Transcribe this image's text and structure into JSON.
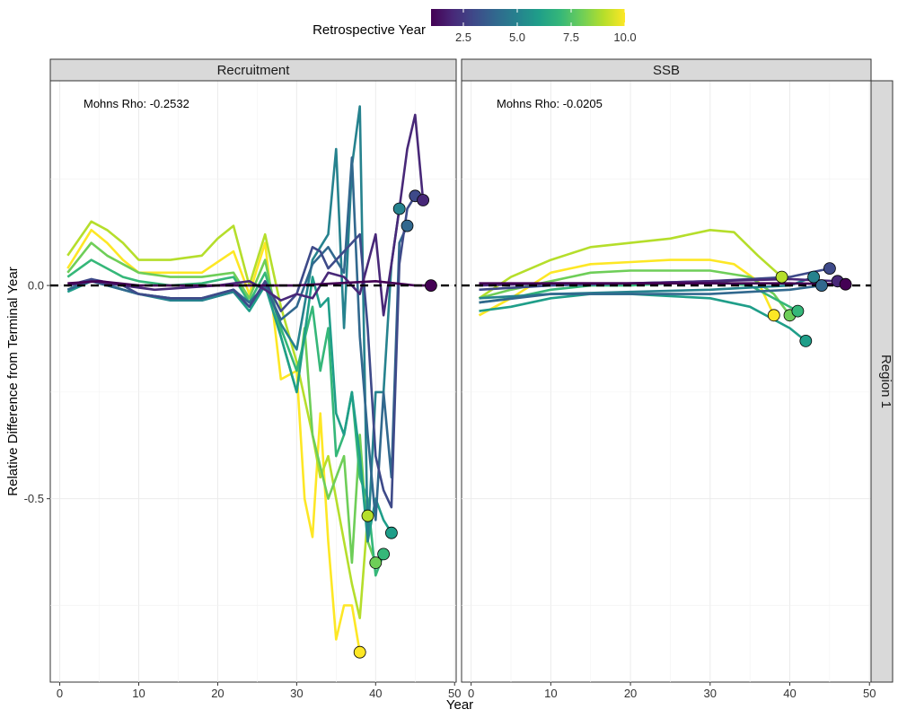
{
  "chart_data": {
    "type": "line",
    "legend": {
      "title": "Retrospective Year",
      "ticks": [
        "2.5",
        "5.0",
        "7.5",
        "10.0"
      ],
      "tick_values": [
        2.5,
        5.0,
        7.5,
        10.0
      ],
      "range": [
        1,
        10
      ],
      "colors": [
        "#440154",
        "#482878",
        "#3e4a89",
        "#31688e",
        "#26828e",
        "#1f9e89",
        "#35b779",
        "#6ece58",
        "#b5de2b",
        "#fde725"
      ]
    },
    "xlabel": "Year",
    "ylabel": "Relative Difference from Terminal Year",
    "row_strip": "Region 1",
    "x_ticks": [
      "0",
      "10",
      "20",
      "30",
      "40",
      "50"
    ],
    "x_tick_values": [
      0,
      10,
      20,
      30,
      40,
      50
    ],
    "y_ticks": [
      "-0.5",
      "0.0"
    ],
    "y_tick_values": [
      -0.5,
      0.0
    ],
    "xlim": [
      -1.2,
      50.2
    ],
    "ylim": [
      -0.93,
      0.48
    ],
    "reference_line": 0.0,
    "panels": [
      {
        "strip": "Recruitment",
        "annotation": "Mohns Rho: -0.2532",
        "series": [
          {
            "peel": 1,
            "x": [
              1,
              5,
              10,
              15,
              20,
              25,
              30,
              35,
              40,
              45,
              47
            ],
            "y": [
              0.005,
              0.01,
              0.0,
              0.0,
              0.0,
              0.0,
              0.0,
              0.005,
              0.01,
              0.0,
              0.0
            ],
            "end": [
              47,
              0.0
            ]
          },
          {
            "peel": 2,
            "x": [
              1,
              4,
              8,
              12,
              16,
              20,
              24,
              26,
              28,
              30,
              32,
              34,
              36,
              38,
              40,
              41,
              42,
              43,
              44,
              45,
              46
            ],
            "y": [
              0.0,
              0.01,
              0.0,
              -0.01,
              -0.005,
              0.0,
              0.01,
              -0.01,
              -0.035,
              -0.02,
              -0.03,
              0.03,
              0.02,
              -0.02,
              0.12,
              -0.07,
              0.05,
              0.18,
              0.32,
              0.4,
              0.2
            ],
            "end": [
              46,
              0.2
            ]
          },
          {
            "peel": 3,
            "x": [
              1,
              4,
              8,
              10,
              14,
              18,
              22,
              24,
              26,
              28,
              30,
              32,
              33,
              34,
              36,
              38,
              39,
              40,
              41,
              42,
              43,
              44,
              45
            ],
            "y": [
              0.0,
              0.015,
              0.0,
              -0.02,
              -0.03,
              -0.03,
              -0.01,
              -0.05,
              0.01,
              -0.06,
              -0.02,
              0.09,
              0.08,
              0.04,
              0.08,
              0.12,
              -0.1,
              -0.4,
              -0.48,
              -0.52,
              0.05,
              0.18,
              0.21
            ],
            "end": [
              45,
              0.21
            ]
          },
          {
            "peel": 4,
            "x": [
              1,
              4,
              8,
              10,
              14,
              18,
              22,
              24,
              26,
              28,
              30,
              32,
              34,
              36,
              37,
              38,
              39,
              40,
              41,
              42,
              43,
              44
            ],
            "y": [
              -0.01,
              0.01,
              -0.01,
              -0.02,
              -0.03,
              -0.03,
              -0.01,
              -0.04,
              0.0,
              -0.08,
              -0.05,
              0.05,
              0.09,
              0.03,
              0.3,
              -0.12,
              -0.35,
              -0.55,
              -0.25,
              -0.45,
              0.1,
              0.14
            ],
            "end": [
              44,
              0.14
            ]
          },
          {
            "peel": 5,
            "x": [
              1,
              4,
              8,
              10,
              14,
              18,
              22,
              24,
              26,
              28,
              30,
              32,
              34,
              35,
              36,
              37,
              38,
              39,
              40,
              41,
              42,
              43
            ],
            "y": [
              -0.01,
              0.015,
              -0.01,
              -0.02,
              -0.035,
              -0.035,
              -0.015,
              -0.05,
              0.005,
              -0.09,
              -0.15,
              0.06,
              0.12,
              0.32,
              -0.1,
              0.28,
              0.42,
              -0.6,
              -0.25,
              -0.25,
              0.05,
              0.18
            ],
            "end": [
              43,
              0.18
            ]
          },
          {
            "peel": 6,
            "x": [
              1,
              4,
              8,
              10,
              14,
              18,
              22,
              24,
              26,
              28,
              30,
              32,
              33,
              34,
              35,
              36,
              37,
              38,
              39,
              40,
              41,
              42
            ],
            "y": [
              -0.015,
              0.01,
              -0.01,
              -0.02,
              -0.03,
              -0.035,
              -0.015,
              -0.06,
              0.0,
              -0.12,
              -0.25,
              0.02,
              -0.05,
              -0.03,
              -0.3,
              -0.35,
              -0.25,
              -0.4,
              -0.6,
              -0.5,
              -0.55,
              -0.58
            ],
            "end": [
              42,
              -0.58
            ]
          },
          {
            "peel": 7,
            "x": [
              1,
              4,
              6,
              8,
              10,
              14,
              18,
              22,
              24,
              26,
              28,
              30,
              32,
              33,
              34,
              35,
              36,
              37,
              38,
              39,
              40,
              41
            ],
            "y": [
              0.02,
              0.06,
              0.04,
              0.02,
              0.01,
              0.0,
              0.005,
              0.02,
              -0.04,
              0.03,
              -0.1,
              -0.2,
              -0.05,
              -0.2,
              -0.1,
              -0.4,
              -0.35,
              -0.25,
              -0.45,
              -0.5,
              -0.68,
              -0.63
            ],
            "end": [
              41,
              -0.63
            ]
          },
          {
            "peel": 8,
            "x": [
              1,
              4,
              6,
              8,
              10,
              14,
              18,
              22,
              24,
              26,
              28,
              30,
              31,
              32,
              34,
              36,
              37,
              38,
              39,
              40
            ],
            "y": [
              0.03,
              0.1,
              0.07,
              0.05,
              0.03,
              0.02,
              0.02,
              0.03,
              -0.03,
              0.06,
              -0.12,
              -0.25,
              -0.1,
              -0.35,
              -0.5,
              -0.4,
              -0.65,
              -0.35,
              -0.6,
              -0.65
            ],
            "end": [
              40,
              -0.65
            ]
          },
          {
            "peel": 9,
            "x": [
              1,
              4,
              6,
              8,
              10,
              14,
              18,
              20,
              22,
              24,
              26,
              28,
              30,
              32,
              33,
              34,
              36,
              37,
              38,
              39
            ],
            "y": [
              0.07,
              0.15,
              0.13,
              0.1,
              0.06,
              0.06,
              0.07,
              0.11,
              0.14,
              0.0,
              0.12,
              -0.05,
              -0.18,
              -0.35,
              -0.45,
              -0.4,
              -0.6,
              -0.7,
              -0.78,
              -0.54
            ],
            "end": [
              39,
              -0.54
            ]
          },
          {
            "peel": 10,
            "x": [
              1,
              4,
              6,
              8,
              10,
              14,
              18,
              22,
              24,
              26,
              28,
              30,
              31,
              32,
              33,
              34,
              35,
              36,
              37,
              38
            ],
            "y": [
              0.04,
              0.13,
              0.1,
              0.06,
              0.03,
              0.03,
              0.03,
              0.08,
              -0.02,
              0.1,
              -0.22,
              -0.2,
              -0.5,
              -0.59,
              -0.3,
              -0.6,
              -0.83,
              -0.75,
              -0.75,
              -0.86
            ],
            "end": [
              38,
              -0.86
            ]
          }
        ]
      },
      {
        "strip": "SSB",
        "annotation": "Mohns Rho: -0.0205",
        "series": [
          {
            "peel": 1,
            "x": [
              1,
              10,
              20,
              30,
              40,
              47
            ],
            "y": [
              0.005,
              0.005,
              0.005,
              0.005,
              0.005,
              0.003
            ],
            "end": [
              47,
              0.003
            ]
          },
          {
            "peel": 2,
            "x": [
              1,
              10,
              20,
              30,
              40,
              46
            ],
            "y": [
              0.0,
              0.005,
              0.005,
              0.01,
              0.015,
              0.01
            ],
            "end": [
              46,
              0.01
            ]
          },
          {
            "peel": 3,
            "x": [
              1,
              10,
              20,
              30,
              40,
              45
            ],
            "y": [
              -0.01,
              0.0,
              0.005,
              0.01,
              0.02,
              0.04
            ],
            "end": [
              45,
              0.04
            ]
          },
          {
            "peel": 4,
            "x": [
              1,
              10,
              20,
              30,
              40,
              44
            ],
            "y": [
              -0.04,
              -0.02,
              -0.02,
              -0.02,
              -0.01,
              0.0
            ],
            "end": [
              44,
              0.0
            ]
          },
          {
            "peel": 5,
            "x": [
              1,
              10,
              20,
              30,
              40,
              43
            ],
            "y": [
              -0.03,
              -0.02,
              -0.015,
              -0.01,
              0.0,
              0.02
            ],
            "end": [
              43,
              0.02
            ]
          },
          {
            "peel": 6,
            "x": [
              1,
              5,
              10,
              15,
              20,
              25,
              30,
              35,
              40,
              42
            ],
            "y": [
              -0.06,
              -0.05,
              -0.03,
              -0.02,
              -0.02,
              -0.025,
              -0.03,
              -0.05,
              -0.1,
              -0.13
            ],
            "end": [
              42,
              -0.13
            ]
          },
          {
            "peel": 7,
            "x": [
              1,
              5,
              10,
              15,
              20,
              25,
              30,
              35,
              39,
              41
            ],
            "y": [
              -0.04,
              -0.03,
              -0.01,
              0.0,
              0.0,
              0.005,
              0.01,
              0.0,
              -0.04,
              -0.06
            ],
            "end": [
              41,
              -0.06
            ]
          },
          {
            "peel": 8,
            "x": [
              1,
              5,
              10,
              15,
              20,
              25,
              30,
              35,
              38,
              40
            ],
            "y": [
              -0.03,
              -0.01,
              0.01,
              0.03,
              0.035,
              0.035,
              0.035,
              0.02,
              -0.02,
              -0.07
            ],
            "end": [
              40,
              -0.07
            ]
          },
          {
            "peel": 9,
            "x": [
              1,
              5,
              10,
              15,
              20,
              25,
              30,
              33,
              36,
              39
            ],
            "y": [
              -0.03,
              0.02,
              0.06,
              0.09,
              0.1,
              0.11,
              0.13,
              0.125,
              0.07,
              0.02
            ],
            "end": [
              39,
              0.02
            ]
          },
          {
            "peel": 10,
            "x": [
              1,
              5,
              10,
              15,
              20,
              25,
              30,
              33,
              36,
              38
            ],
            "y": [
              -0.07,
              -0.03,
              0.03,
              0.05,
              0.055,
              0.06,
              0.06,
              0.05,
              0.01,
              -0.07
            ],
            "end": [
              38,
              -0.07
            ]
          }
        ]
      }
    ]
  }
}
